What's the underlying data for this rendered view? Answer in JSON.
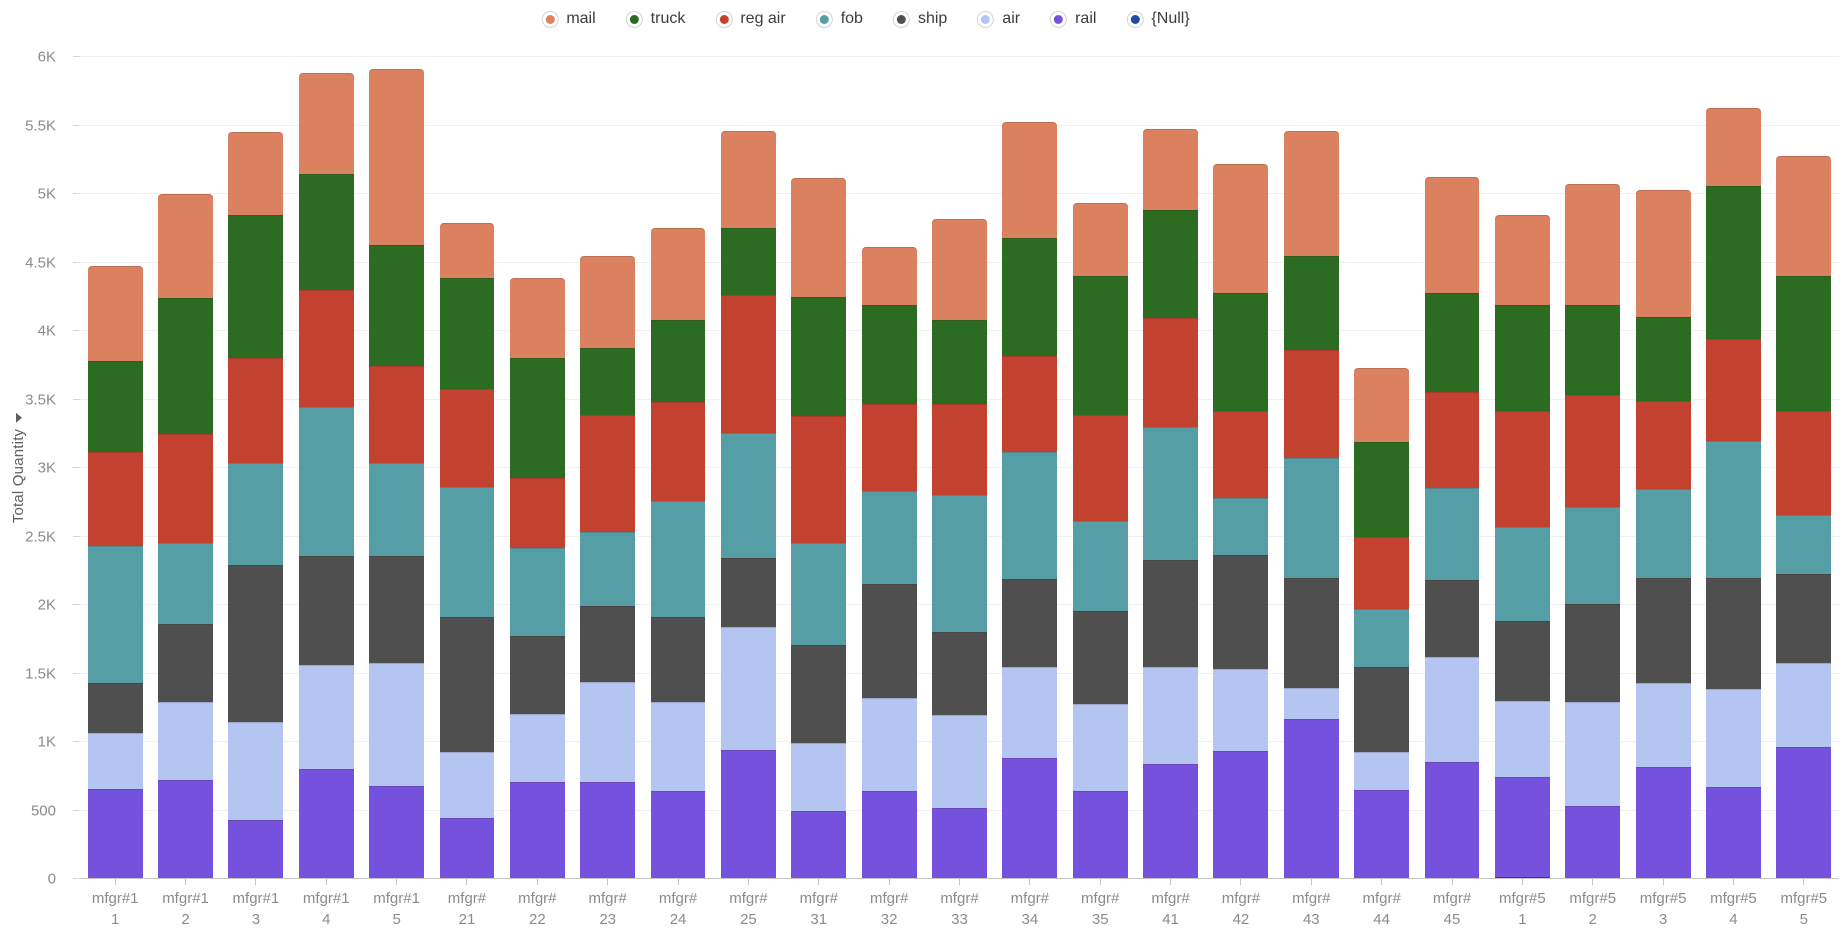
{
  "chart_data": {
    "type": "bar",
    "stacked": true,
    "title": "",
    "xlabel": "",
    "ylabel": "Total Quantity",
    "sort_icon": "▾",
    "ylim": [
      0,
      6000
    ],
    "grid": true,
    "legend_position": "top-center",
    "y_ticks": [
      {
        "label": "0",
        "value": 0
      },
      {
        "label": "500",
        "value": 500
      },
      {
        "label": "1K",
        "value": 1000
      },
      {
        "label": "1.5K",
        "value": 1500
      },
      {
        "label": "2K",
        "value": 2000
      },
      {
        "label": "2.5K",
        "value": 2500
      },
      {
        "label": "3K",
        "value": 3000
      },
      {
        "label": "3.5K",
        "value": 3500
      },
      {
        "label": "4K",
        "value": 4000
      },
      {
        "label": "4.5K",
        "value": 4500
      },
      {
        "label": "5K",
        "value": 5000
      },
      {
        "label": "5.5K",
        "value": 5500
      },
      {
        "label": "6K",
        "value": 6000
      }
    ],
    "categories": [
      {
        "line1": "mfgr#1",
        "line2": "1"
      },
      {
        "line1": "mfgr#1",
        "line2": "2"
      },
      {
        "line1": "mfgr#1",
        "line2": "3"
      },
      {
        "line1": "mfgr#1",
        "line2": "4"
      },
      {
        "line1": "mfgr#1",
        "line2": "5"
      },
      {
        "line1": "mfgr#",
        "line2": "21"
      },
      {
        "line1": "mfgr#",
        "line2": "22"
      },
      {
        "line1": "mfgr#",
        "line2": "23"
      },
      {
        "line1": "mfgr#",
        "line2": "24"
      },
      {
        "line1": "mfgr#",
        "line2": "25"
      },
      {
        "line1": "mfgr#",
        "line2": "31"
      },
      {
        "line1": "mfgr#",
        "line2": "32"
      },
      {
        "line1": "mfgr#",
        "line2": "33"
      },
      {
        "line1": "mfgr#",
        "line2": "34"
      },
      {
        "line1": "mfgr#",
        "line2": "35"
      },
      {
        "line1": "mfgr#",
        "line2": "41"
      },
      {
        "line1": "mfgr#",
        "line2": "42"
      },
      {
        "line1": "mfgr#",
        "line2": "43"
      },
      {
        "line1": "mfgr#",
        "line2": "44"
      },
      {
        "line1": "mfgr#",
        "line2": "45"
      },
      {
        "line1": "mfgr#5",
        "line2": "1"
      },
      {
        "line1": "mfgr#5",
        "line2": "2"
      },
      {
        "line1": "mfgr#5",
        "line2": "3"
      },
      {
        "line1": "mfgr#5",
        "line2": "4"
      },
      {
        "line1": "mfgr#5",
        "line2": "5"
      }
    ],
    "stack_order_bottom_to_top": [
      "null_group",
      "rail",
      "air",
      "ship",
      "fob",
      "reg_air",
      "truck",
      "mail"
    ],
    "series": [
      {
        "id": "mail",
        "name": "mail",
        "color": "#DB8160",
        "values": [
          690,
          755,
          610,
          740,
          1280,
          405,
          590,
          675,
          675,
          705,
          870,
          420,
          735,
          845,
          535,
          590,
          945,
          910,
          540,
          845,
          660,
          885,
          930,
          570,
          870
        ]
      },
      {
        "id": "truck",
        "name": "truck",
        "color": "#2C6B22",
        "values": [
          665,
          1000,
          1045,
          845,
          885,
          805,
          875,
          490,
          600,
          490,
          865,
          720,
          610,
          860,
          1015,
          790,
          860,
          690,
          690,
          725,
          775,
          660,
          610,
          1120,
          990
        ]
      },
      {
        "id": "reg_air",
        "name": "reg air",
        "color": "#C2422F",
        "values": [
          690,
          795,
          760,
          855,
          705,
          720,
          510,
          855,
          720,
          1010,
          925,
          635,
          665,
          705,
          770,
          795,
          635,
          790,
          530,
          700,
          845,
          815,
          640,
          740,
          760
        ]
      },
      {
        "id": "fob",
        "name": "fob",
        "color": "#569EA6",
        "values": [
          1000,
          585,
          745,
          1090,
          685,
          950,
          640,
          535,
          845,
          915,
          750,
          685,
          1000,
          925,
          660,
          975,
          415,
          870,
          425,
          670,
          685,
          705,
          650,
          1000,
          425
        ]
      },
      {
        "id": "ship",
        "name": "ship",
        "color": "#4F4F50",
        "values": [
          365,
          570,
          1150,
          795,
          780,
          985,
          570,
          560,
          620,
          500,
          715,
          830,
          610,
          640,
          675,
          780,
          835,
          805,
          620,
          565,
          585,
          715,
          770,
          810,
          650
        ]
      },
      {
        "id": "air",
        "name": "air",
        "color": "#B4C5F2",
        "values": [
          405,
          570,
          715,
          755,
          895,
          480,
          500,
          730,
          650,
          895,
          495,
          680,
          680,
          670,
          640,
          705,
          595,
          230,
          275,
          765,
          555,
          765,
          610,
          720,
          620
        ]
      },
      {
        "id": "rail",
        "name": "rail",
        "color": "#7552DE",
        "values": [
          660,
          725,
          430,
          805,
          680,
          445,
          705,
          705,
          645,
          945,
          495,
          640,
          515,
          880,
          640,
          840,
          935,
          1165,
          650,
          855,
          730,
          530,
          820,
          670,
          960
        ]
      },
      {
        "id": "null_group",
        "name": "{Null}",
        "color": "#1D4FA1",
        "values": [
          0,
          0,
          0,
          0,
          0,
          0,
          0,
          0,
          0,
          0,
          0,
          0,
          0,
          0,
          0,
          0,
          0,
          0,
          0,
          0,
          15,
          0,
          0,
          0,
          0
        ]
      }
    ]
  }
}
